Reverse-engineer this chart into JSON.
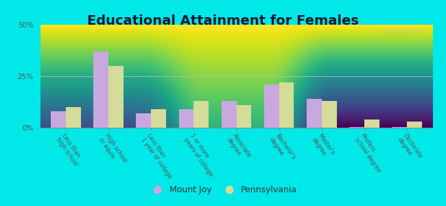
{
  "title": "Educational Attainment for Females",
  "categories": [
    "Less than\nhigh school",
    "High school\nor equiv.",
    "Less than\n1 year of college",
    "1 or more\nyears of college",
    "Associate\ndegree",
    "Bachelor's\ndegree",
    "Master's\ndegree",
    "Profess.\nschool degree",
    "Doctorate\ndegree"
  ],
  "mount_joy": [
    8.0,
    37.0,
    7.0,
    9.0,
    13.0,
    21.0,
    14.0,
    0.3,
    0.3
  ],
  "pennsylvania": [
    10.0,
    30.0,
    9.0,
    13.0,
    11.0,
    22.0,
    13.0,
    4.0,
    3.0
  ],
  "mount_joy_color": "#c9a8e0",
  "pennsylvania_color": "#d4dc9a",
  "bg_top_color": "#ffffff",
  "bg_bottom_color": "#d8edcc",
  "outer_bg": "#00e8e8",
  "ylim": [
    0,
    50
  ],
  "yticks": [
    0,
    25,
    50
  ],
  "ytick_labels": [
    "0%",
    "25%",
    "50%"
  ],
  "title_fontsize": 14,
  "bar_width": 0.35,
  "legend_labels": [
    "Mount Joy",
    "Pennsylvania"
  ],
  "watermark": "City-Data.com"
}
